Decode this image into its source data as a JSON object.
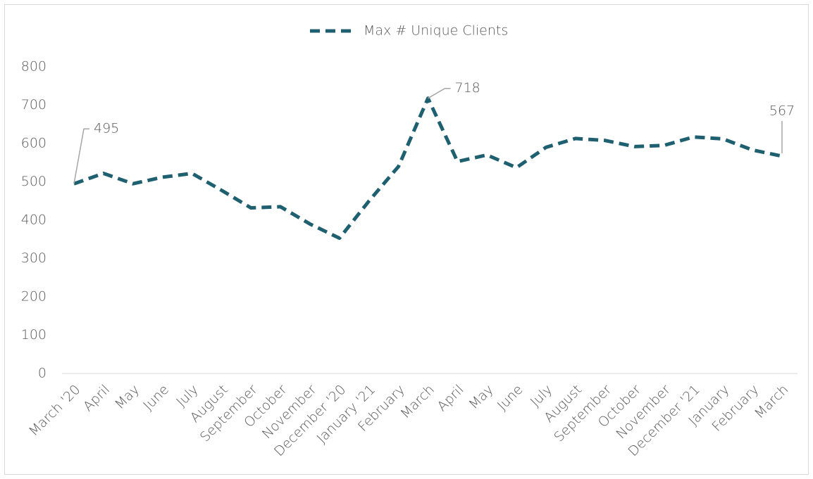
{
  "chart_data": {
    "type": "line",
    "categories": [
      "March '20",
      "April",
      "May",
      "June",
      "July",
      "August",
      "September",
      "October",
      "November",
      "December '20",
      "January '21",
      "February",
      "March",
      "April",
      "May",
      "June",
      "July",
      "August",
      "September",
      "October",
      "November",
      "December '21",
      "January",
      "February",
      "March"
    ],
    "series": [
      {
        "name": "Max # Unique Clients",
        "color": "#1f6070",
        "values": [
          495,
          522,
          495,
          512,
          522,
          478,
          432,
          435,
          390,
          353,
          450,
          540,
          718,
          553,
          570,
          537,
          590,
          613,
          608,
          592,
          595,
          617,
          612,
          583,
          567
        ]
      }
    ],
    "labeled_points": [
      0,
      12,
      24
    ],
    "ylim": [
      0,
      800
    ],
    "yticks": [
      0,
      100,
      200,
      300,
      400,
      500,
      600,
      700,
      800
    ],
    "legend": "top",
    "grid": false
  }
}
